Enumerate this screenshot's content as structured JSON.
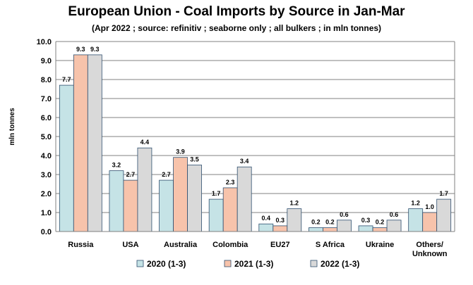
{
  "chart_data": {
    "type": "bar",
    "title": "European Union - Coal Imports by Source in Jan-Mar",
    "subtitle": "(Apr 2022 ; source: refinitiv ; seaborne only ; all bulkers ; in mln tonnes)",
    "xlabel": "",
    "ylabel": "mln tonnes",
    "ylim": [
      0,
      10
    ],
    "yticks": [
      "0.0",
      "1.0",
      "2.0",
      "3.0",
      "4.0",
      "5.0",
      "6.0",
      "7.0",
      "8.0",
      "9.0",
      "10.0"
    ],
    "grid": true,
    "legend_position": "bottom",
    "categories": [
      "Russia",
      "USA",
      "Australia",
      "Colombia",
      "EU27",
      "S Africa",
      "Ukraine",
      "Others/\nUnknown"
    ],
    "series": [
      {
        "name": "2020 (1-3)",
        "color": "#c5e3e6",
        "values": [
          7.7,
          3.2,
          2.7,
          1.7,
          0.4,
          0.2,
          0.3,
          1.2
        ],
        "labels": [
          "7.7",
          "3.2",
          "2.7",
          "1.7",
          "0.4",
          "0.2",
          "0.3",
          "1.2"
        ]
      },
      {
        "name": "2021 (1-3)",
        "color": "#f7c3ab",
        "values": [
          9.3,
          2.7,
          3.9,
          2.3,
          0.3,
          0.2,
          0.2,
          1.0
        ],
        "labels": [
          "9.3",
          "2.7",
          "3.9",
          "2.3",
          "0.3",
          "0.2",
          "0.2",
          "1.0"
        ]
      },
      {
        "name": "2022 (1-3)",
        "color": "#d9d9d9",
        "values": [
          9.3,
          4.4,
          3.5,
          3.4,
          1.2,
          0.6,
          0.6,
          1.7
        ],
        "labels": [
          "9.3",
          "4.4",
          "3.5",
          "3.4",
          "1.2",
          "0.6",
          "0.6",
          "1.7"
        ]
      }
    ]
  }
}
